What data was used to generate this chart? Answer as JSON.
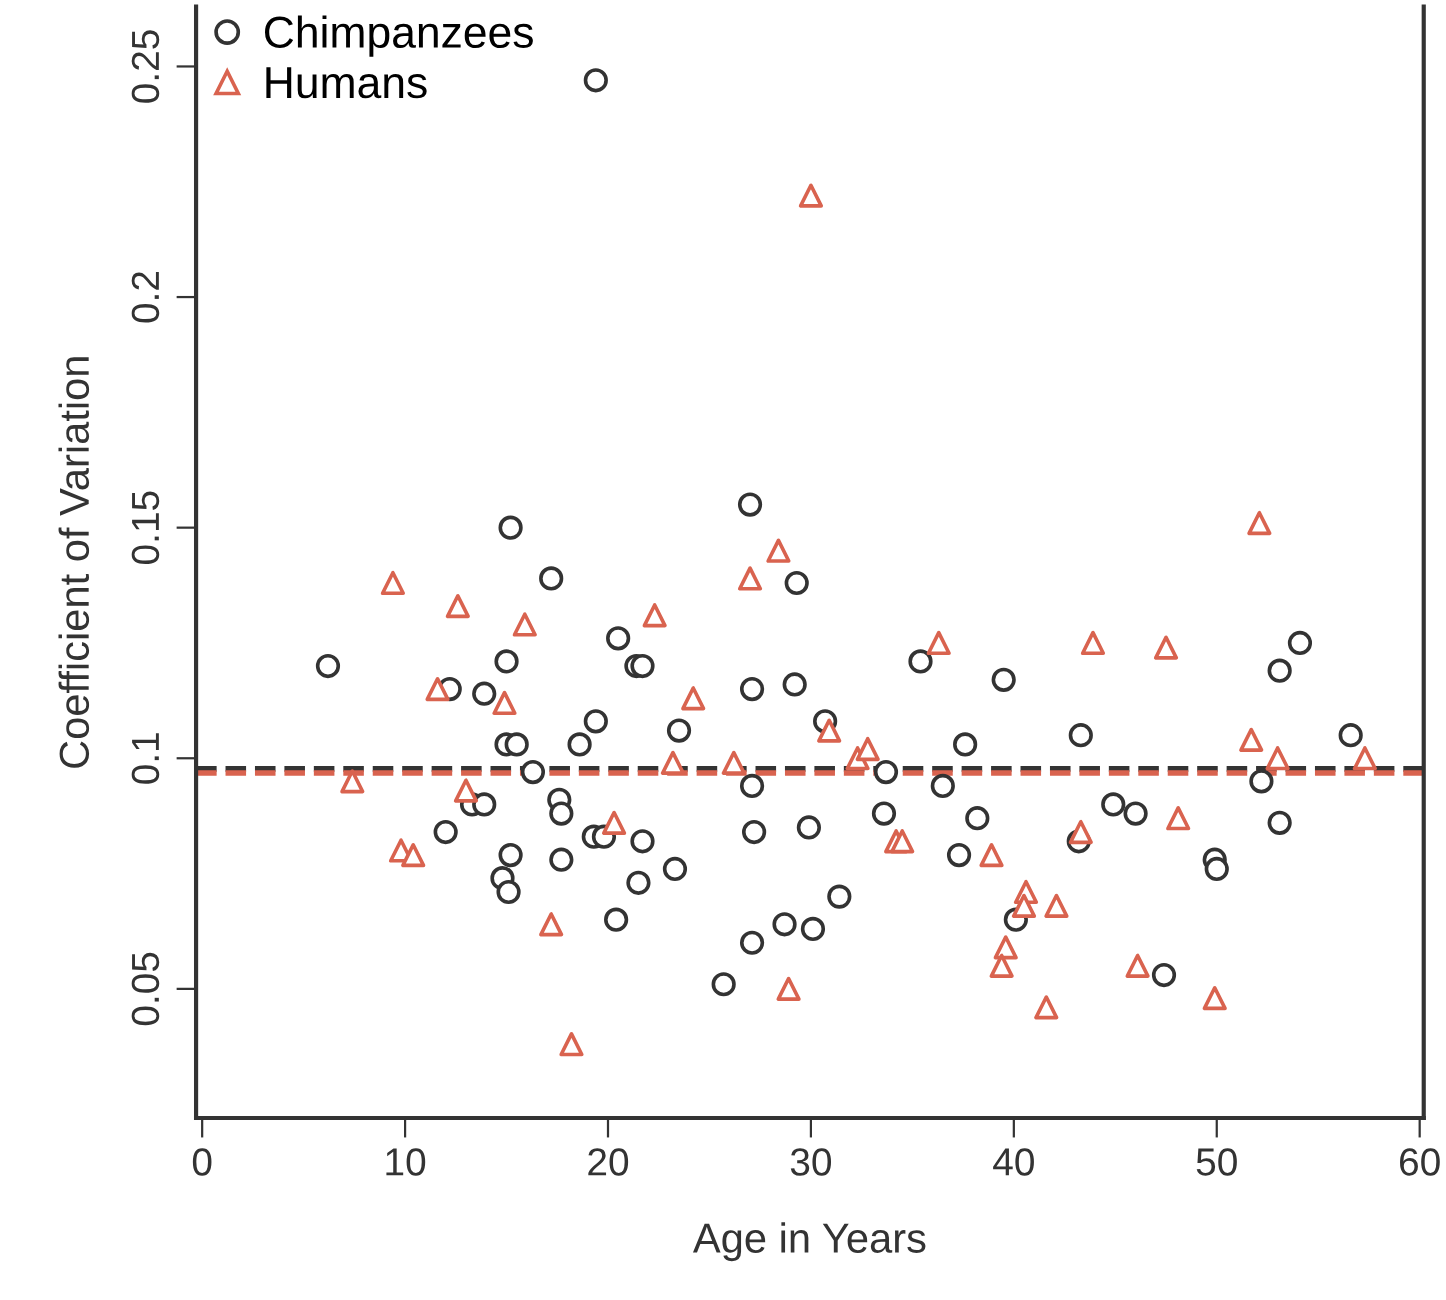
{
  "chart_data": {
    "type": "scatter",
    "xlabel": "Age in Years",
    "ylabel": "Coefficient of Variation",
    "xlim": [
      -0.3,
      60.2
    ],
    "ylim": [
      0.022,
      0.263
    ],
    "xticks": [
      0,
      10,
      20,
      30,
      40,
      50,
      60
    ],
    "yticks": [
      0.05,
      0.1,
      0.15,
      0.2,
      0.25
    ],
    "grid": false,
    "legend": "top left",
    "series": [
      {
        "name": "Chimpanzees",
        "color": "#333333",
        "marker": "circle",
        "x": [
          19.4,
          15.2,
          17.2,
          6.2,
          15.0,
          12.2,
          13.9,
          19.4,
          15.0,
          15.5,
          18.6,
          16.3,
          17.6,
          17.7,
          13.3,
          13.9,
          12.0,
          19.3,
          19.8,
          15.2,
          17.7,
          14.8,
          15.1,
          20.4,
          27.0,
          29.3,
          20.5,
          21.4,
          21.7,
          27.1,
          29.2,
          23.5,
          30.7,
          33.7,
          27.1,
          21.7,
          27.2,
          29.9,
          33.6,
          21.5,
          23.3,
          27.1,
          28.7,
          30.1,
          31.4,
          25.7,
          35.4,
          39.5,
          37.6,
          36.5,
          38.2,
          37.3,
          40.1,
          54.1,
          53.1,
          43.3,
          56.6,
          52.2,
          44.9,
          46.0,
          53.1,
          43.2,
          49.9,
          50.0,
          47.4
        ],
        "values": [
          0.247,
          0.15,
          0.139,
          0.12,
          0.121,
          0.115,
          0.114,
          0.108,
          0.103,
          0.103,
          0.103,
          0.097,
          0.091,
          0.088,
          0.09,
          0.09,
          0.084,
          0.083,
          0.083,
          0.079,
          0.078,
          0.074,
          0.071,
          0.065,
          0.155,
          0.138,
          0.126,
          0.12,
          0.12,
          0.115,
          0.116,
          0.106,
          0.108,
          0.097,
          0.094,
          0.082,
          0.084,
          0.085,
          0.088,
          0.073,
          0.076,
          0.06,
          0.064,
          0.063,
          0.07,
          0.051,
          0.121,
          0.117,
          0.103,
          0.094,
          0.087,
          0.079,
          0.065,
          0.125,
          0.119,
          0.105,
          0.105,
          0.095,
          0.09,
          0.088,
          0.086,
          0.082,
          0.078,
          0.076,
          0.053
        ]
      },
      {
        "name": "Humans",
        "color": "#d9634f",
        "marker": "triangle",
        "x": [
          9.4,
          12.6,
          15.9,
          11.6,
          14.9,
          7.4,
          13.0,
          9.8,
          10.4,
          17.2,
          18.2,
          20.3,
          30.0,
          28.4,
          27.0,
          22.3,
          24.2,
          30.9,
          23.2,
          26.2,
          32.3,
          32.8,
          34.2,
          34.5,
          28.9,
          36.3,
          38.9,
          40.6,
          40.5,
          39.6,
          39.4,
          43.9,
          47.5,
          51.7,
          53.0,
          57.3,
          48.1,
          43.3,
          42.1,
          46.1,
          41.6,
          49.9,
          52.1
        ],
        "values": [
          0.138,
          0.133,
          0.129,
          0.115,
          0.112,
          0.095,
          0.093,
          0.08,
          0.079,
          0.064,
          0.038,
          0.086,
          0.222,
          0.145,
          0.139,
          0.131,
          0.113,
          0.106,
          0.099,
          0.099,
          0.1,
          0.102,
          0.082,
          0.082,
          0.05,
          0.125,
          0.079,
          0.071,
          0.068,
          0.059,
          0.055,
          0.125,
          0.124,
          0.104,
          0.1,
          0.1,
          0.087,
          0.084,
          0.068,
          0.055,
          0.046,
          0.048,
          0.151
        ]
      }
    ],
    "ref_lines": [
      {
        "axis": "y",
        "value": 0.0977,
        "color": "#333333",
        "line_style": "dashed"
      },
      {
        "axis": "y",
        "value": 0.0968,
        "color": "#d9634f",
        "line_style": "dashed"
      }
    ]
  }
}
